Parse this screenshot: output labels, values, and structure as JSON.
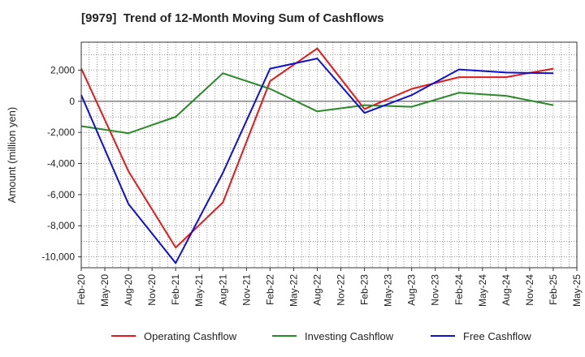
{
  "chart_data": {
    "type": "line",
    "title": "[9979]  Trend of 12-Month Moving Sum of Cashflows",
    "xlabel": "",
    "ylabel": "Amount (million yen)",
    "x_tick_labels": [
      "Feb-20",
      "May-20",
      "Aug-20",
      "Nov-20",
      "Feb-21",
      "May-21",
      "Aug-21",
      "Nov-21",
      "Feb-22",
      "May-22",
      "Aug-22",
      "Nov-22",
      "Feb-23",
      "May-23",
      "Aug-23",
      "Nov-23",
      "Feb-24",
      "May-24",
      "Aug-24",
      "Nov-24",
      "Feb-25",
      "May-25"
    ],
    "y_ticks": [
      2000,
      0,
      -2000,
      -4000,
      -6000,
      -8000,
      -10000
    ],
    "y_tick_labels": [
      "2,000",
      "0",
      "-2,000",
      "-4,000",
      "-6,000",
      "-8,000",
      "-10,000"
    ],
    "ylim": [
      -10700,
      3800
    ],
    "x_points": [
      "Feb-20",
      "Aug-20",
      "Feb-21",
      "Aug-21",
      "Feb-22",
      "Aug-22",
      "Feb-23",
      "Aug-23",
      "Feb-24",
      "Aug-24",
      "Feb-25"
    ],
    "grid": true,
    "legend_position": "bottom",
    "series": [
      {
        "name": "Operating Cashflow",
        "color": "#e31a1c",
        "values": [
          2100,
          -4500,
          -9400,
          -6500,
          1300,
          3400,
          -500,
          800,
          1550,
          1550,
          2100
        ]
      },
      {
        "name": "Investing Cashflow",
        "color": "#2a8a2a",
        "values": [
          -1600,
          -2050,
          -1000,
          1800,
          800,
          -650,
          -250,
          -350,
          550,
          350,
          -250
        ]
      },
      {
        "name": "Free Cashflow",
        "color": "#1010d0",
        "values": [
          400,
          -6600,
          -10400,
          -4600,
          2100,
          2750,
          -750,
          400,
          2050,
          1850,
          1800
        ]
      }
    ]
  }
}
